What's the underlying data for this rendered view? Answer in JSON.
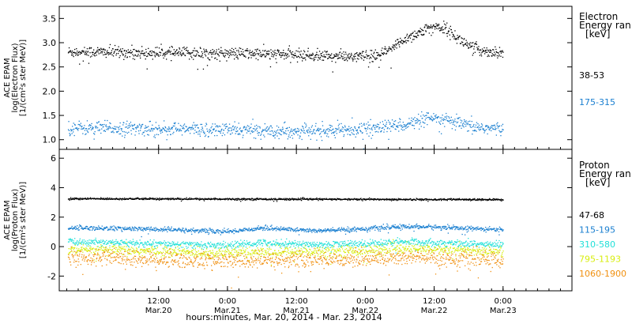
{
  "chart_data": [
    {
      "type": "scatter",
      "panel": "electron",
      "ylabel": [
        "ACE EPAM",
        "log(Electron Flux)",
        "[1/(cm²s ster MeV)]"
      ],
      "ylim": [
        0.8,
        3.75
      ],
      "yticks": [
        1.0,
        1.5,
        2.0,
        2.5,
        3.0,
        3.5
      ],
      "ytick_labels": [
        "1.0",
        "1.5",
        "2.0",
        "2.5",
        "3.0",
        "3.5"
      ],
      "legend_title": [
        "Electron",
        "Energy ran",
        "[keV]"
      ],
      "series": [
        {
          "name": "38-53",
          "color": "#000000",
          "base": 2.78,
          "noise": 0.06,
          "profile": [
            [
              0,
              2.82
            ],
            [
              10,
              2.8
            ],
            [
              30,
              2.78
            ],
            [
              45,
              2.72
            ],
            [
              50,
              2.73
            ],
            [
              52,
              2.85
            ],
            [
              55,
              3.1
            ],
            [
              58,
              3.25
            ],
            [
              60,
              3.35
            ],
            [
              62,
              3.3
            ],
            [
              64,
              3.1
            ],
            [
              66,
              2.95
            ],
            [
              68,
              2.85
            ],
            [
              72,
              2.8
            ]
          ]
        },
        {
          "name": "175-315",
          "color": "#1a7fd0",
          "base": 1.22,
          "noise": 0.07,
          "profile": [
            [
              0,
              1.25
            ],
            [
              20,
              1.22
            ],
            [
              40,
              1.18
            ],
            [
              50,
              1.25
            ],
            [
              56,
              1.35
            ],
            [
              60,
              1.45
            ],
            [
              63,
              1.38
            ],
            [
              66,
              1.28
            ],
            [
              72,
              1.22
            ]
          ]
        }
      ]
    },
    {
      "type": "scatter",
      "panel": "proton",
      "ylabel": [
        "ACE EPAM",
        "log(Proton Flux)",
        "[1/(cm²s ster MeV)]"
      ],
      "ylim": [
        -3,
        6.6
      ],
      "yticks": [
        -2,
        0,
        2,
        4,
        6
      ],
      "ytick_labels": [
        "-2",
        "0",
        "2",
        "4",
        "6"
      ],
      "legend_title": [
        "Proton",
        "Energy ran",
        "[keV]"
      ],
      "series": [
        {
          "name": "47-68",
          "color": "#000000",
          "base": 3.25,
          "noise": 0.03,
          "profile": [
            [
              0,
              3.28
            ],
            [
              36,
              3.25
            ],
            [
              72,
              3.22
            ]
          ]
        },
        {
          "name": "115-195",
          "color": "#1a7fd0",
          "base": 1.2,
          "noise": 0.08,
          "profile": [
            [
              0,
              1.3
            ],
            [
              12,
              1.2
            ],
            [
              24,
              1.05
            ],
            [
              30,
              1.3
            ],
            [
              40,
              1.1
            ],
            [
              48,
              1.25
            ],
            [
              56,
              1.4
            ],
            [
              64,
              1.3
            ],
            [
              72,
              1.15
            ]
          ]
        },
        {
          "name": "310-580",
          "color": "#22e0d8",
          "base": 0.2,
          "noise": 0.12,
          "profile": [
            [
              0,
              0.35
            ],
            [
              12,
              0.2
            ],
            [
              24,
              0.1
            ],
            [
              30,
              0.3
            ],
            [
              40,
              0.15
            ],
            [
              56,
              0.35
            ],
            [
              72,
              0.15
            ]
          ]
        },
        {
          "name": "795-1193",
          "color": "#d8ee10",
          "base": -0.3,
          "noise": 0.18,
          "profile": [
            [
              0,
              -0.2
            ],
            [
              24,
              -0.4
            ],
            [
              40,
              -0.3
            ],
            [
              56,
              -0.15
            ],
            [
              72,
              -0.3
            ]
          ]
        },
        {
          "name": "1060-1900",
          "color": "#f09010",
          "base": -0.85,
          "noise": 0.28,
          "profile": [
            [
              0,
              -0.7
            ],
            [
              24,
              -0.95
            ],
            [
              40,
              -0.85
            ],
            [
              56,
              -0.7
            ],
            [
              72,
              -0.9
            ]
          ]
        }
      ]
    }
  ],
  "xaxis": {
    "label": "hours:minutes, Mar. 20, 2014 - Mar. 23, 2014",
    "range_hours": [
      -5.3,
      84
    ],
    "ticks": [
      {
        "hour": 12,
        "line1": "12:00",
        "line2": "Mar.20"
      },
      {
        "hour": 24,
        "line1": "0:00",
        "line2": "Mar.21"
      },
      {
        "hour": 36,
        "line1": "12:00",
        "line2": "Mar.21"
      },
      {
        "hour": 48,
        "line1": "0:00",
        "line2": "Mar.22"
      },
      {
        "hour": 60,
        "line1": "12:00",
        "line2": "Mar.22"
      },
      {
        "hour": 72,
        "line1": "0:00",
        "line2": "Mar.23"
      }
    ]
  }
}
